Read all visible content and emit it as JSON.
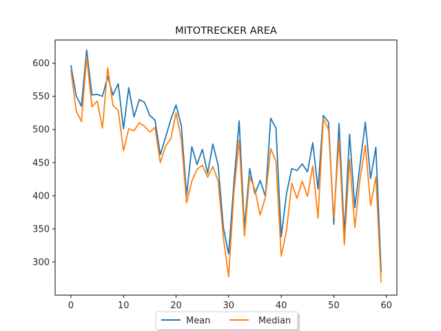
{
  "chart_data": {
    "type": "line",
    "title": "MITOTRECKER AREA",
    "xlabel": "",
    "ylabel": "",
    "xlim": [
      -3,
      62
    ],
    "ylim": [
      250,
      635
    ],
    "xticks": [
      0,
      10,
      20,
      30,
      40,
      50,
      60
    ],
    "yticks": [
      300,
      350,
      400,
      450,
      500,
      550,
      600
    ],
    "grid": false,
    "legend_placement": "bottom-center",
    "x": [
      0,
      1,
      2,
      3,
      4,
      5,
      6,
      7,
      8,
      9,
      10,
      11,
      12,
      13,
      14,
      15,
      16,
      17,
      18,
      19,
      20,
      21,
      22,
      23,
      24,
      25,
      26,
      27,
      28,
      29,
      30,
      31,
      32,
      33,
      34,
      35,
      36,
      37,
      38,
      39,
      40,
      41,
      42,
      43,
      44,
      45,
      46,
      47,
      48,
      49,
      50,
      51,
      52,
      53,
      54,
      55,
      56,
      57,
      58,
      59
    ],
    "series": [
      {
        "name": "Mean",
        "color": "#1f77b4",
        "values": [
          597,
          551,
          535,
          620,
          552,
          553,
          550,
          580,
          552,
          569,
          501,
          563,
          519,
          545,
          541,
          521,
          514,
          462,
          488,
          515,
          537,
          506,
          400,
          474,
          447,
          470,
          434,
          478,
          446,
          352,
          312,
          419,
          513,
          351,
          441,
          403,
          423,
          399,
          517,
          502,
          338,
          403,
          441,
          438,
          448,
          436,
          480,
          410,
          521,
          511,
          357,
          509,
          342,
          493,
          382,
          448,
          511,
          426,
          473,
          284
        ]
      },
      {
        "name": "Median",
        "color": "#ff7f0e",
        "values": [
          590,
          528,
          512,
          610,
          534,
          543,
          502,
          593,
          536,
          529,
          468,
          501,
          498,
          510,
          505,
          496,
          503,
          450,
          475,
          486,
          525,
          485,
          389,
          422,
          440,
          446,
          428,
          444,
          422,
          337,
          278,
          404,
          484,
          339,
          429,
          409,
          371,
          398,
          471,
          452,
          309,
          347,
          419,
          396,
          422,
          399,
          445,
          366,
          516,
          500,
          366,
          484,
          326,
          455,
          352,
          426,
          476,
          385,
          428,
          269
        ]
      }
    ]
  }
}
